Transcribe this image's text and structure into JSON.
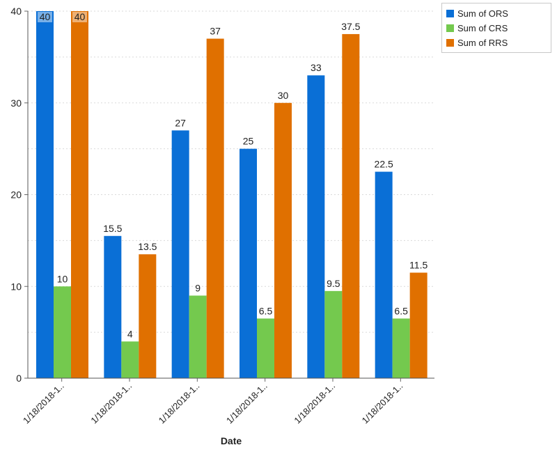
{
  "chart_data": {
    "type": "bar",
    "title": "",
    "xlabel": "Date",
    "ylabel": "",
    "ylim": [
      0,
      40
    ],
    "yticks": [
      0,
      10,
      20,
      30,
      40
    ],
    "categories": [
      "1/18/2018-1..",
      "1/18/2018-1..",
      "1/18/2018-1..",
      "1/18/2018-1..",
      "1/18/2018-1..",
      "1/18/2018-1.."
    ],
    "series": [
      {
        "name": "Sum of ORS",
        "color": "#0a6fd6",
        "values": [
          40,
          15.5,
          27,
          25,
          33,
          22.5
        ]
      },
      {
        "name": "Sum of CRS",
        "color": "#74c94e",
        "values": [
          10,
          4,
          9,
          6.5,
          9.5,
          6.5
        ]
      },
      {
        "name": "Sum of RRS",
        "color": "#e07000",
        "values": [
          40,
          13.5,
          37,
          30,
          37.5,
          11.5
        ]
      }
    ],
    "data_labels": [
      [
        "40",
        "15.5",
        "27",
        "25",
        "33",
        "22.5"
      ],
      [
        "10",
        "4",
        "9",
        "6.5",
        "9.5",
        "6.5"
      ],
      [
        "40",
        "13.5",
        "37",
        "30",
        "37.5",
        "11.5"
      ]
    ],
    "legend": {
      "position": "top-right"
    },
    "grid": true
  }
}
